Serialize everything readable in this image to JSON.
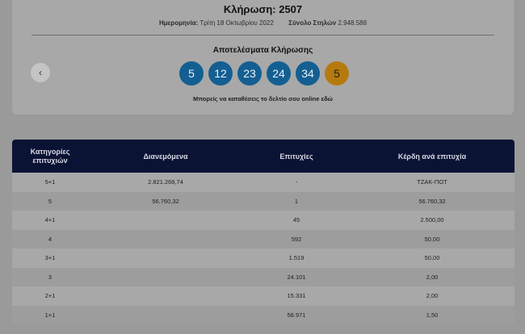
{
  "draw": {
    "title": "Κλήρωση: 2507",
    "date_label": "Ημερομηνία:",
    "date_value": "Τρίτη 18 Οκτωβρίου 2022",
    "columns_label": "Σύνολο Στηλών",
    "columns_value": "2.948.588",
    "results_title": "Αποτελέσματα Κλήρωσης",
    "numbers": [
      "5",
      "12",
      "23",
      "24",
      "34"
    ],
    "joker": "5",
    "online_note": "Μπορείς να καταθέσεις το δελτίο σου online",
    "online_link": "εδώ",
    "prev_icon": "chevron-left-icon",
    "colors": {
      "ball": "#145f92",
      "joker": "#b57a0f",
      "header": "#0b1335"
    }
  },
  "table": {
    "headers": [
      "Κατηγορίες επιτυχιών",
      "Διανεμόμενα",
      "Επιτυχίες",
      "Κέρδη ανά επιτυχία"
    ],
    "rows": [
      [
        "5+1",
        "2.821.268,74",
        "-",
        "ΤΖΑΚ-ΠΟΤ"
      ],
      [
        "5",
        "56.760,32",
        "1",
        "56.760,32"
      ],
      [
        "4+1",
        "",
        "45",
        "2.500,00"
      ],
      [
        "4",
        "",
        "592",
        "50,00"
      ],
      [
        "3+1",
        "",
        "1.519",
        "50,00"
      ],
      [
        "3",
        "",
        "24.101",
        "2,00"
      ],
      [
        "2+1",
        "",
        "15.331",
        "2,00"
      ],
      [
        "1+1",
        "",
        "58.971",
        "1,50"
      ]
    ]
  }
}
